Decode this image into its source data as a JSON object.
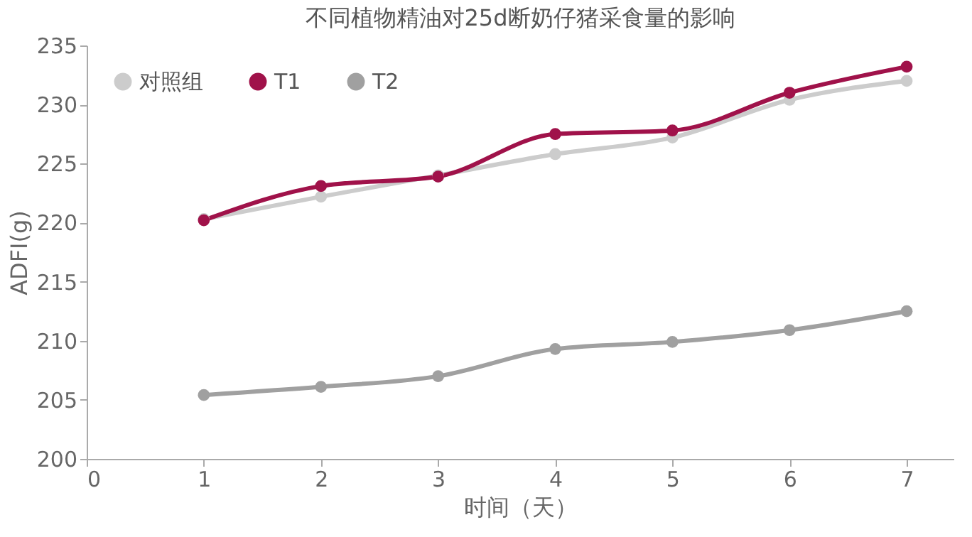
{
  "chart_data": {
    "type": "line",
    "title": "不同植物精油对25d断奶仔猪采食量的影响",
    "xlabel": "时间（天）",
    "ylabel": "ADFI(g)",
    "x": [
      1,
      2,
      3,
      4,
      5,
      6,
      7
    ],
    "series": [
      {
        "name": "对照组",
        "color": "#cccccc",
        "values": [
          220.3,
          222.2,
          224.0,
          225.8,
          227.2,
          230.4,
          232.0
        ]
      },
      {
        "name": "T1",
        "color": "#a0124a",
        "values": [
          220.2,
          223.1,
          223.9,
          227.5,
          227.8,
          231.0,
          233.2
        ]
      },
      {
        "name": "T2",
        "color": "#a0a0a0",
        "values": [
          205.4,
          206.1,
          207.0,
          209.3,
          209.9,
          210.9,
          212.5
        ]
      }
    ],
    "xlim": [
      0,
      7.4
    ],
    "xticks": [
      0,
      1,
      2,
      3,
      4,
      5,
      6,
      7
    ],
    "ylim": [
      200,
      235
    ],
    "yticks": [
      200,
      205,
      210,
      215,
      220,
      225,
      230,
      235
    ],
    "grid": false,
    "legend": "top left",
    "marker": "circle",
    "line_style": "solid"
  }
}
